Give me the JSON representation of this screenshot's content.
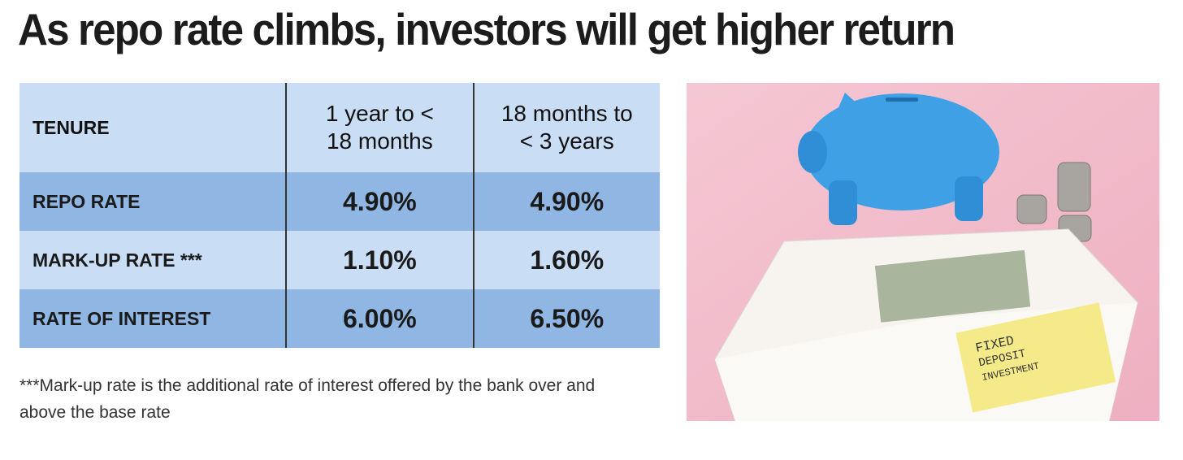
{
  "header": {
    "title": "As repo rate climbs, investors will get higher return"
  },
  "table": {
    "columns": [
      "TENURE",
      "1 year to <\n18 months",
      "18 months to\n< 3 years"
    ],
    "rows": [
      [
        "REPO RATE",
        "4.90%",
        "4.90%"
      ],
      [
        "MARK-UP RATE ***",
        "1.10%",
        "1.60%"
      ],
      [
        "RATE OF INTEREST",
        "6.00%",
        "6.50%"
      ]
    ]
  },
  "footnote": "***Mark-up rate is the additional rate of interest offered by the bank over and above the base rate",
  "image": {
    "note_lines": [
      "FIXED",
      "DEPOSIT",
      "INVESTMENT"
    ]
  }
}
